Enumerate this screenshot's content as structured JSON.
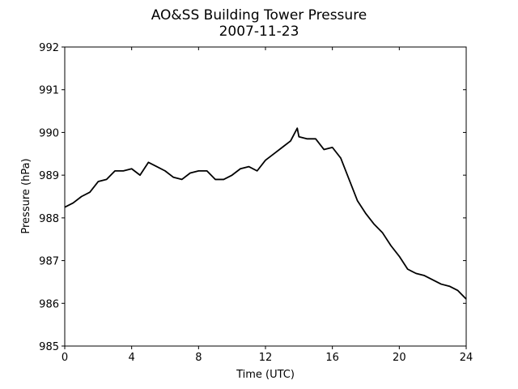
{
  "chart_data": {
    "type": "line",
    "title": "AO&SS Building Tower Pressure",
    "subtitle": "2007-11-23",
    "x_label": "Time (UTC)",
    "y_label": "Pressure (hPa)",
    "xlim": [
      0,
      24
    ],
    "xticks": [
      0,
      4,
      8,
      12,
      16,
      20,
      24
    ],
    "ylim": [
      985,
      992
    ],
    "yticks": [
      985,
      986,
      987,
      988,
      989,
      990,
      991,
      992
    ],
    "grid": false,
    "series": [
      {
        "color": "#000000",
        "x": [
          0,
          0.5,
          1,
          1.5,
          2,
          2.5,
          3,
          3.5,
          4,
          4.5,
          5,
          5.5,
          6,
          6.5,
          7,
          7.5,
          8,
          8.5,
          9,
          9.5,
          10,
          10.5,
          11,
          11.5,
          12,
          12.5,
          13,
          13.5,
          13.9,
          14,
          14.5,
          15,
          15.5,
          16,
          16.5,
          17,
          17.5,
          18,
          18.5,
          19,
          19.5,
          20,
          20.5,
          21,
          21.5,
          22,
          22.5,
          23,
          23.5,
          24
        ],
        "values": [
          988.25,
          988.35,
          988.5,
          988.6,
          988.85,
          988.9,
          989.1,
          989.1,
          989.15,
          989.0,
          989.3,
          989.2,
          989.1,
          988.95,
          988.9,
          989.05,
          989.1,
          989.1,
          988.9,
          988.9,
          989.0,
          989.15,
          989.2,
          989.1,
          989.35,
          989.5,
          989.65,
          989.8,
          990.1,
          989.9,
          989.85,
          989.85,
          989.6,
          989.65,
          989.4,
          988.9,
          988.4,
          988.1,
          987.85,
          987.65,
          987.35,
          987.1,
          986.8,
          986.7,
          986.65,
          986.55,
          986.45,
          986.4,
          986.3,
          986.1
        ]
      }
    ]
  }
}
